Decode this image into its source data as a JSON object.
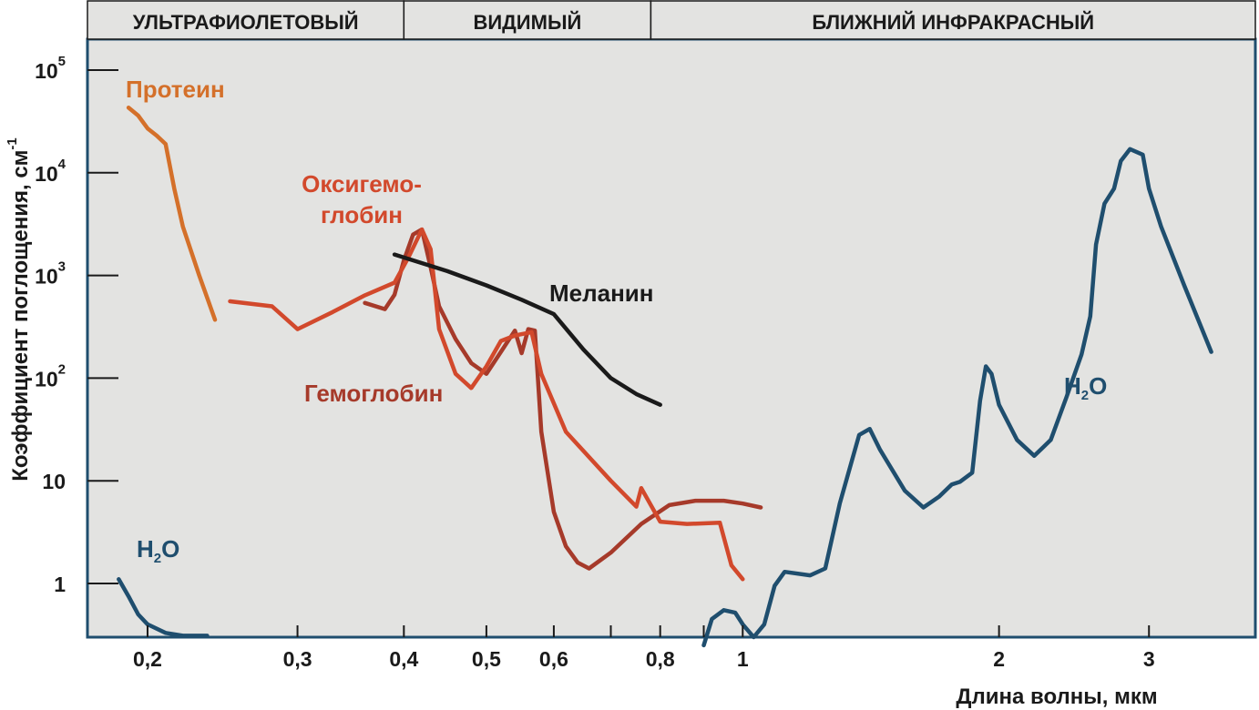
{
  "chart_data": {
    "type": "line",
    "title": "",
    "xlabel": "Длина волны, мкм",
    "ylabel": "Коэффициент поглощения, см",
    "ylabel_sup": "-1",
    "x_scale": "log",
    "y_scale": "log",
    "xlim": [
      0.17,
      4.0
    ],
    "ylim": [
      0.3,
      200000
    ],
    "grid": false,
    "bands": [
      {
        "label": "УЛЬТРАФИОЛЕТОВЫЙ",
        "from": 0.17,
        "to": 0.4
      },
      {
        "label": "ВИДИМЫЙ",
        "from": 0.4,
        "to": 0.78
      },
      {
        "label": "БЛИЖНИЙ ИНФРАКРАСНЫЙ",
        "from": 0.78,
        "to": 4.0
      }
    ],
    "x_ticks": [
      {
        "value": 0.2,
        "label": "0,2"
      },
      {
        "value": 0.3,
        "label": "0,3"
      },
      {
        "value": 0.4,
        "label": "0,4"
      },
      {
        "value": 0.5,
        "label": "0,5"
      },
      {
        "value": 0.6,
        "label": "0,6"
      },
      {
        "value": 0.8,
        "label": "0,8"
      },
      {
        "value": 1,
        "label": "1"
      },
      {
        "value": 2,
        "label": "2"
      },
      {
        "value": 3,
        "label": "3"
      }
    ],
    "x_minor_ticks": [
      0.7,
      0.9
    ],
    "y_ticks": [
      {
        "value": 1,
        "base": "1",
        "exp": ""
      },
      {
        "value": 10,
        "base": "10",
        "exp": ""
      },
      {
        "value": 100,
        "base": "10",
        "exp": "2"
      },
      {
        "value": 1000,
        "base": "10",
        "exp": "3"
      },
      {
        "value": 10000,
        "base": "10",
        "exp": "4"
      },
      {
        "value": 100000,
        "base": "10",
        "exp": "5"
      }
    ],
    "series": [
      {
        "name": "Протеин",
        "color": "#d4702a",
        "label_lines": [
          "Протеин"
        ],
        "points": [
          [
            0.19,
            43000
          ],
          [
            0.195,
            36000
          ],
          [
            0.2,
            27000
          ],
          [
            0.205,
            23000
          ],
          [
            0.21,
            19000
          ],
          [
            0.215,
            7000
          ],
          [
            0.22,
            3000
          ],
          [
            0.23,
            1000
          ],
          [
            0.24,
            370
          ]
        ]
      },
      {
        "name": "Оксигемоглобин",
        "color": "#d2492c",
        "label_lines": [
          "Оксигемо-",
          "глобин"
        ],
        "points": [
          [
            0.25,
            560
          ],
          [
            0.28,
            500
          ],
          [
            0.3,
            300
          ],
          [
            0.33,
            440
          ],
          [
            0.36,
            640
          ],
          [
            0.39,
            850
          ],
          [
            0.405,
            1500
          ],
          [
            0.42,
            2800
          ],
          [
            0.43,
            1800
          ],
          [
            0.44,
            300
          ],
          [
            0.46,
            110
          ],
          [
            0.48,
            80
          ],
          [
            0.5,
            130
          ],
          [
            0.52,
            230
          ],
          [
            0.54,
            260
          ],
          [
            0.565,
            280
          ],
          [
            0.58,
            110
          ],
          [
            0.62,
            30
          ],
          [
            0.7,
            10
          ],
          [
            0.75,
            5.6
          ],
          [
            0.76,
            8.5
          ],
          [
            0.8,
            4
          ],
          [
            0.86,
            3.8
          ],
          [
            0.94,
            3.9
          ],
          [
            0.97,
            1.5
          ],
          [
            1.0,
            1.1
          ]
        ]
      },
      {
        "name": "Гемоглобин",
        "color": "#a63a2a",
        "label_lines": [
          "Гемоглобин"
        ],
        "points": [
          [
            0.36,
            540
          ],
          [
            0.38,
            470
          ],
          [
            0.39,
            650
          ],
          [
            0.4,
            1400
          ],
          [
            0.41,
            2500
          ],
          [
            0.42,
            2800
          ],
          [
            0.43,
            1200
          ],
          [
            0.44,
            500
          ],
          [
            0.46,
            240
          ],
          [
            0.48,
            140
          ],
          [
            0.5,
            110
          ],
          [
            0.52,
            180
          ],
          [
            0.54,
            290
          ],
          [
            0.55,
            175
          ],
          [
            0.56,
            300
          ],
          [
            0.57,
            290
          ],
          [
            0.58,
            30
          ],
          [
            0.6,
            5
          ],
          [
            0.62,
            2.3
          ],
          [
            0.64,
            1.6
          ],
          [
            0.66,
            1.4
          ],
          [
            0.7,
            2
          ],
          [
            0.76,
            3.8
          ],
          [
            0.82,
            5.8
          ],
          [
            0.88,
            6.4
          ],
          [
            0.95,
            6.4
          ],
          [
            1.0,
            6.0
          ],
          [
            1.05,
            5.5
          ]
        ]
      },
      {
        "name": "Меланин",
        "color": "#1a1a1a",
        "label_lines": [
          "Меланин"
        ],
        "points": [
          [
            0.39,
            1600
          ],
          [
            0.45,
            1100
          ],
          [
            0.5,
            800
          ],
          [
            0.55,
            580
          ],
          [
            0.6,
            420
          ],
          [
            0.65,
            190
          ],
          [
            0.7,
            100
          ],
          [
            0.75,
            70
          ],
          [
            0.8,
            55
          ]
        ]
      },
      {
        "name": "H2O",
        "color": "#1f4e6e",
        "label_lines": [
          "H2O"
        ],
        "segments": [
          [
            [
              0.185,
              1.1
            ],
            [
              0.19,
              0.75
            ],
            [
              0.195,
              0.5
            ],
            [
              0.2,
              0.4
            ],
            [
              0.21,
              0.33
            ],
            [
              0.22,
              0.31
            ],
            [
              0.235,
              0.31
            ]
          ],
          [
            [
              0.9,
              0.25
            ],
            [
              0.92,
              0.45
            ],
            [
              0.95,
              0.55
            ],
            [
              0.98,
              0.52
            ],
            [
              1.0,
              0.4
            ],
            [
              1.03,
              0.3
            ],
            [
              1.06,
              0.4
            ],
            [
              1.09,
              0.95
            ],
            [
              1.12,
              1.3
            ],
            [
              1.2,
              1.2
            ],
            [
              1.25,
              1.4
            ],
            [
              1.3,
              6
            ],
            [
              1.37,
              28
            ],
            [
              1.41,
              32
            ],
            [
              1.45,
              20
            ],
            [
              1.55,
              8
            ],
            [
              1.63,
              5.5
            ],
            [
              1.7,
              7
            ],
            [
              1.76,
              9.2
            ],
            [
              1.8,
              9.8
            ],
            [
              1.86,
              12
            ],
            [
              1.9,
              60
            ],
            [
              1.93,
              130
            ],
            [
              1.96,
              110
            ],
            [
              2.0,
              55
            ],
            [
              2.1,
              25
            ],
            [
              2.2,
              17.5
            ],
            [
              2.3,
              25
            ],
            [
              2.4,
              65
            ],
            [
              2.5,
              170
            ],
            [
              2.56,
              400
            ],
            [
              2.6,
              2000
            ],
            [
              2.66,
              5000
            ],
            [
              2.73,
              7000
            ],
            [
              2.78,
              13000
            ],
            [
              2.85,
              17000
            ],
            [
              2.95,
              15000
            ],
            [
              3.0,
              7000
            ],
            [
              3.1,
              3000
            ],
            [
              3.3,
              800
            ],
            [
              3.55,
              180
            ]
          ]
        ]
      }
    ]
  }
}
